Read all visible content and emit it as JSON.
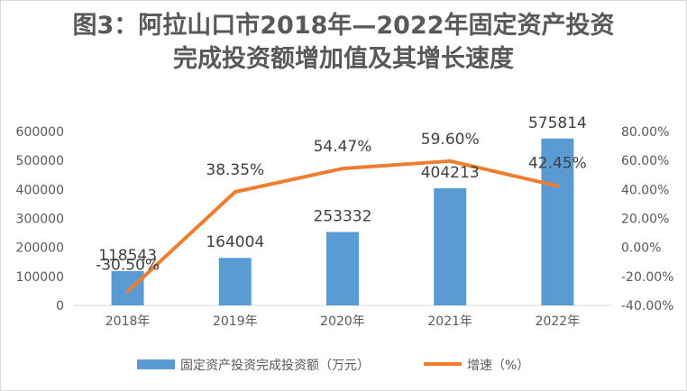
{
  "chart_data": {
    "type": "bar+line",
    "title_line1": "图3：阿拉山口市2018年—2022年固定资产投资",
    "title_line2": "完成投资额增加值及其增长速度",
    "categories": [
      "2018年",
      "2019年",
      "2020年",
      "2021年",
      "2022年"
    ],
    "series": [
      {
        "name": "固定资产投资完成投资额（万元）",
        "type": "bar",
        "axis": "left",
        "values": [
          118543,
          164004,
          253332,
          404213,
          575814
        ],
        "labels": [
          "118543",
          "164004",
          "253332",
          "404213",
          "575814"
        ],
        "color": "#5b9bd5"
      },
      {
        "name": "增速（%）",
        "type": "line",
        "axis": "right",
        "values": [
          -30.5,
          38.35,
          54.47,
          59.6,
          42.45
        ],
        "labels": [
          "-30.50%",
          "38.35%",
          "54.47%",
          "59.60%",
          "42.45%"
        ],
        "color": "#ed7d31"
      }
    ],
    "y_left": {
      "min": 0,
      "max": 600000,
      "ticks": [
        0,
        100000,
        200000,
        300000,
        400000,
        500000,
        600000
      ],
      "tick_labels": [
        "0",
        "100000",
        "200000",
        "300000",
        "400000",
        "500000",
        "600000"
      ]
    },
    "y_right": {
      "min": -40,
      "max": 80,
      "ticks": [
        -40,
        -20,
        0,
        20,
        40,
        60,
        80
      ],
      "tick_labels": [
        "-40.00%",
        "-20.00%",
        "0.00%",
        "20.00%",
        "40.00%",
        "60.00%",
        "80.00%"
      ]
    },
    "legend_position": "bottom",
    "grid": false
  }
}
